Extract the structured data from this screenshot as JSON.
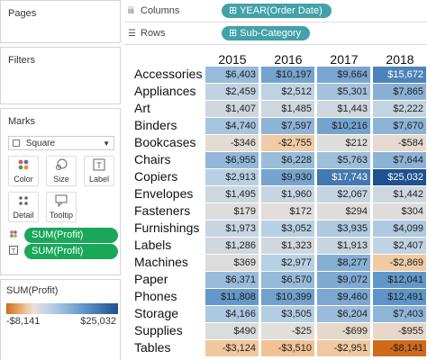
{
  "pages_title": "Pages",
  "filters_title": "Filters",
  "marks": {
    "title": "Marks",
    "mark_type": "Square",
    "buttons": [
      {
        "label": "Color",
        "icon": "color-dots-icon"
      },
      {
        "label": "Size",
        "icon": "size-circles-icon"
      },
      {
        "label": "Label",
        "icon": "text-t-icon"
      },
      {
        "label": "Detail",
        "icon": "detail-dots-icon"
      },
      {
        "label": "Tooltip",
        "icon": "tooltip-bubble-icon"
      }
    ],
    "pills": [
      {
        "label": "SUM(Profit)",
        "icon": "color-dots-icon"
      },
      {
        "label": "SUM(Profit)",
        "icon": "text-t-icon"
      }
    ]
  },
  "shelves": {
    "columns_label": "Columns",
    "columns_pill": "YEAR(Order Date)",
    "rows_label": "Rows",
    "rows_pill": "Sub-Category"
  },
  "legend": {
    "title": "SUM(Profit)",
    "min": "-$8,141",
    "max": "$25,032",
    "colors": {
      "negative": "#d06a1b",
      "neutral": "#e8e0da",
      "positive": "#1f5190"
    }
  },
  "chart_data": {
    "type": "heatmap",
    "columns": [
      "2015",
      "2016",
      "2017",
      "2018"
    ],
    "rows": [
      "Accessories",
      "Appliances",
      "Art",
      "Binders",
      "Bookcases",
      "Chairs",
      "Copiers",
      "Envelopes",
      "Fasteners",
      "Furnishings",
      "Labels",
      "Machines",
      "Paper",
      "Phones",
      "Storage",
      "Supplies",
      "Tables"
    ],
    "values": [
      [
        6403,
        10197,
        9664,
        15672
      ],
      [
        2459,
        2512,
        5301,
        7865
      ],
      [
        1407,
        1485,
        1443,
        2222
      ],
      [
        4740,
        7597,
        10216,
        7670
      ],
      [
        -346,
        -2755,
        212,
        -584
      ],
      [
        6955,
        6228,
        5763,
        7644
      ],
      [
        2913,
        9930,
        17743,
        25032
      ],
      [
        1495,
        1960,
        2067,
        1442
      ],
      [
        179,
        172,
        294,
        304
      ],
      [
        1973,
        3052,
        3935,
        4099
      ],
      [
        1286,
        1323,
        1913,
        2407
      ],
      [
        369,
        2977,
        8277,
        -2869
      ],
      [
        6371,
        6570,
        9072,
        12041
      ],
      [
        11808,
        10399,
        9460,
        12491
      ],
      [
        4166,
        3505,
        6204,
        7403
      ],
      [
        490,
        -25,
        -699,
        -955
      ],
      [
        -3124,
        -3510,
        -2951,
        -8141
      ]
    ],
    "labels": [
      [
        "$6,403",
        "$10,197",
        "$9,664",
        "$15,672"
      ],
      [
        "$2,459",
        "$2,512",
        "$5,301",
        "$7,865"
      ],
      [
        "$1,407",
        "$1,485",
        "$1,443",
        "$2,222"
      ],
      [
        "$4,740",
        "$7,597",
        "$10,216",
        "$7,670"
      ],
      [
        "-$346",
        "-$2,755",
        "$212",
        "-$584"
      ],
      [
        "$6,955",
        "$6,228",
        "$5,763",
        "$7,644"
      ],
      [
        "$2,913",
        "$9,930",
        "$17,743",
        "$25,032"
      ],
      [
        "$1,495",
        "$1,960",
        "$2,067",
        "$1,442"
      ],
      [
        "$179",
        "$172",
        "$294",
        "$304"
      ],
      [
        "$1,973",
        "$3,052",
        "$3,935",
        "$4,099"
      ],
      [
        "$1,286",
        "$1,323",
        "$1,913",
        "$2,407"
      ],
      [
        "$369",
        "$2,977",
        "$8,277",
        "-$2,869"
      ],
      [
        "$6,371",
        "$6,570",
        "$9,072",
        "$12,041"
      ],
      [
        "$11,808",
        "$10,399",
        "$9,460",
        "$12,491"
      ],
      [
        "$4,166",
        "$3,505",
        "$6,204",
        "$7,403"
      ],
      [
        "$490",
        "-$25",
        "-$699",
        "-$955"
      ],
      [
        "-$3,124",
        "-$3,510",
        "-$2,951",
        "-$8,141"
      ]
    ],
    "color_range": [
      -8141,
      25032
    ]
  }
}
